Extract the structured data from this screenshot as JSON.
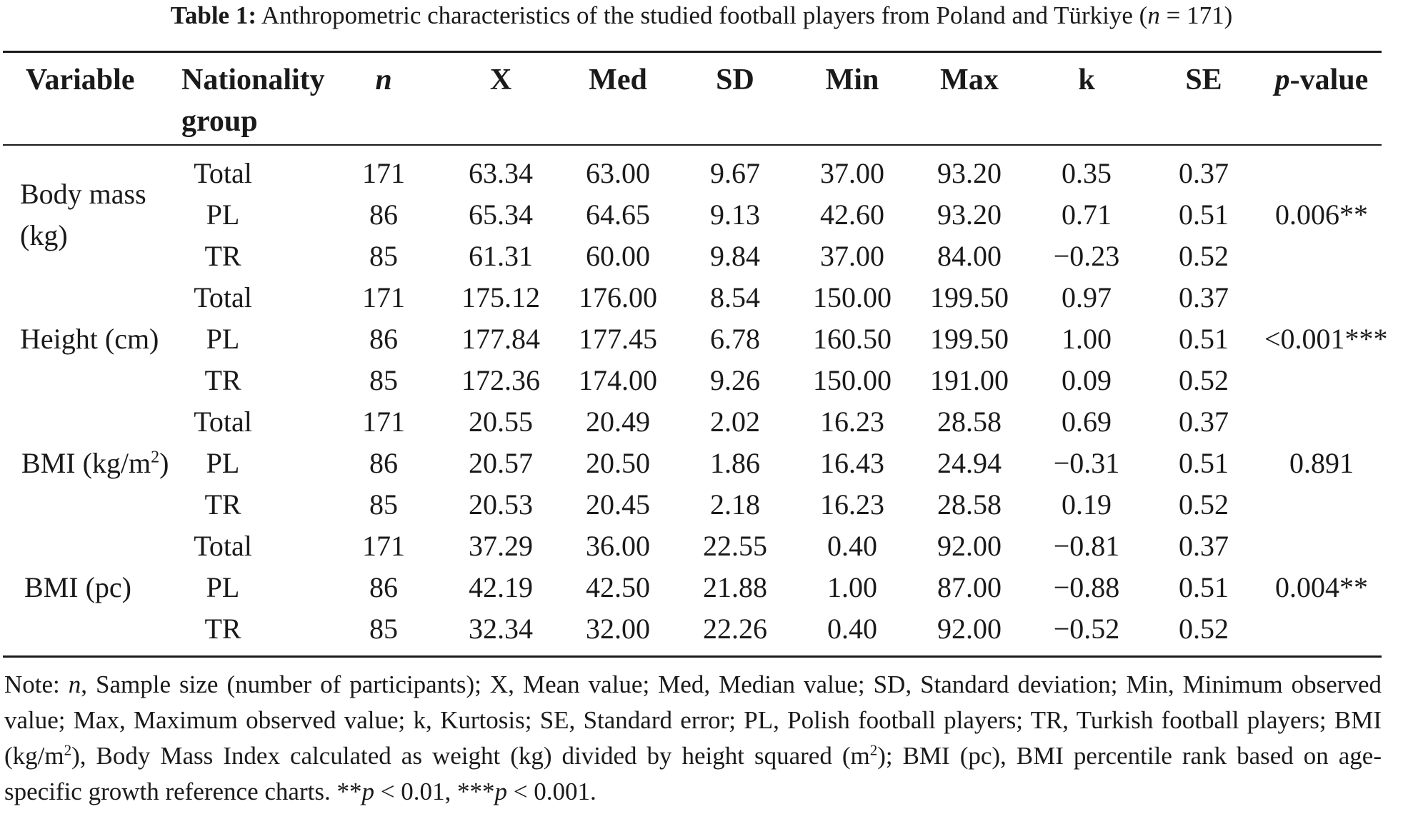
{
  "caption": {
    "label": "Table 1:",
    "text": " Anthropometric characteristics of the studied football players from Poland and Türkiye (",
    "n_symbol": "n",
    "n_value": " = 171)"
  },
  "table": {
    "headers": {
      "variable": "Variable",
      "nationality_line1": "Nationality",
      "nationality_line2": "group",
      "n": "n",
      "x": "X",
      "med": "Med",
      "sd": "SD",
      "min": "Min",
      "max": "Max",
      "k": "k",
      "se": "SE",
      "p_italic": "p",
      "p_rest": "-value"
    },
    "blocks": [
      {
        "variable_line1": "Body mass",
        "variable_line2": "(kg)",
        "p_value": "0.006**",
        "rows": [
          {
            "group": "Total",
            "n": "171",
            "x": "63.34",
            "med": "63.00",
            "sd": "9.67",
            "min": "37.00",
            "max": "93.20",
            "k": "0.35",
            "se": "0.37"
          },
          {
            "group": "PL",
            "n": "86",
            "x": "65.34",
            "med": "64.65",
            "sd": "9.13",
            "min": "42.60",
            "max": "93.20",
            "k": "0.71",
            "se": "0.51"
          },
          {
            "group": "TR",
            "n": "85",
            "x": "61.31",
            "med": "60.00",
            "sd": "9.84",
            "min": "37.00",
            "max": "84.00",
            "k": "−0.23",
            "se": "0.52"
          }
        ]
      },
      {
        "variable_line1": "Height (cm)",
        "p_value": "<0.001***",
        "rows": [
          {
            "group": "Total",
            "n": "171",
            "x": "175.12",
            "med": "176.00",
            "sd": "8.54",
            "min": "150.00",
            "max": "199.50",
            "k": "0.97",
            "se": "0.37"
          },
          {
            "group": "PL",
            "n": "86",
            "x": "177.84",
            "med": "177.45",
            "sd": "6.78",
            "min": "160.50",
            "max": "199.50",
            "k": "1.00",
            "se": "0.51"
          },
          {
            "group": "TR",
            "n": "85",
            "x": "172.36",
            "med": "174.00",
            "sd": "9.26",
            "min": "150.00",
            "max": "191.00",
            "k": "0.09",
            "se": "0.52"
          }
        ]
      },
      {
        "variable_pre": "BMI (kg/m",
        "variable_sup": "2",
        "variable_post": ")",
        "p_value": "0.891",
        "rows": [
          {
            "group": "Total",
            "n": "171",
            "x": "20.55",
            "med": "20.49",
            "sd": "2.02",
            "min": "16.23",
            "max": "28.58",
            "k": "0.69",
            "se": "0.37"
          },
          {
            "group": "PL",
            "n": "86",
            "x": "20.57",
            "med": "20.50",
            "sd": "1.86",
            "min": "16.43",
            "max": "24.94",
            "k": "−0.31",
            "se": "0.51"
          },
          {
            "group": "TR",
            "n": "85",
            "x": "20.53",
            "med": "20.45",
            "sd": "2.18",
            "min": "16.23",
            "max": "28.58",
            "k": "0.19",
            "se": "0.52"
          }
        ]
      },
      {
        "variable_line1": "BMI (pc)",
        "p_value": "0.004**",
        "rows": [
          {
            "group": "Total",
            "n": "171",
            "x": "37.29",
            "med": "36.00",
            "sd": "22.55",
            "min": "0.40",
            "max": "92.00",
            "k": "−0.81",
            "se": "0.37"
          },
          {
            "group": "PL",
            "n": "86",
            "x": "42.19",
            "med": "42.50",
            "sd": "21.88",
            "min": "1.00",
            "max": "87.00",
            "k": "−0.88",
            "se": "0.51"
          },
          {
            "group": "TR",
            "n": "85",
            "x": "32.34",
            "med": "32.00",
            "sd": "22.26",
            "min": "0.40",
            "max": "92.00",
            "k": "−0.52",
            "se": "0.52"
          }
        ]
      }
    ]
  },
  "note": {
    "p1": "Note: ",
    "n": "n",
    "p2": ", Sample size (number of participants); X, Mean value; Med, Median value; SD, Standard deviation; Min, Minimum observed value; Max, Maximum observed value; k, Kurtosis; SE, Standard error; PL, Polish football players; TR, Turkish football players; BMI (kg/m",
    "sup1": "2",
    "p3": "), Body Mass Index calculated as weight (kg) divided by height squared (m",
    "sup2": "2",
    "p4": "); BMI (pc), BMI percentile rank based on age-specific growth reference charts. **",
    "p_a": "p",
    "p5": " < 0.01, ***",
    "p_b": "p",
    "p6": " < 0.001."
  }
}
